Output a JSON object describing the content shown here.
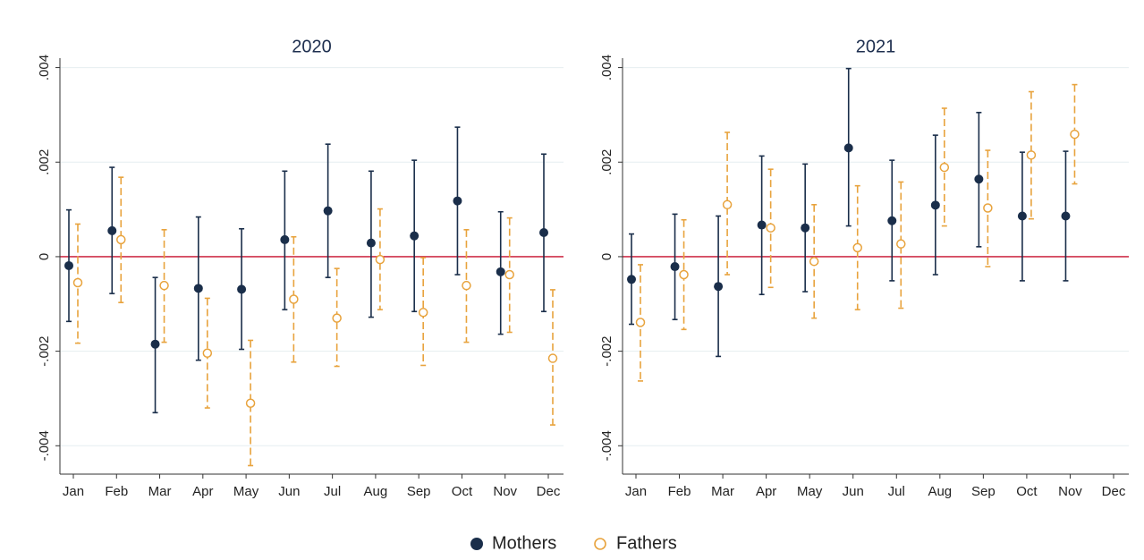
{
  "chart_data": [
    {
      "type": "errorbar",
      "title": "2020",
      "categories": [
        "Jan",
        "Feb",
        "Mar",
        "Apr",
        "May",
        "Jun",
        "Jul",
        "Aug",
        "Sep",
        "Oct",
        "Nov",
        "Dec"
      ],
      "ylim": [
        -0.0046,
        0.0042
      ],
      "yticks": [
        {
          "value": -0.004,
          "label": "-.004"
        },
        {
          "value": -0.002,
          "label": "-.002"
        },
        0,
        {
          "value": 0.002,
          "label": ".002"
        },
        {
          "value": 0.004,
          "label": ".004"
        }
      ],
      "grid": true,
      "refline": 0,
      "refline_color": "#c8102e",
      "series": [
        {
          "name": "Mothers",
          "color": "#1a2e4a",
          "marker": "filled",
          "dashed": false,
          "values": [
            -0.00019,
            0.00055,
            -0.00185,
            -0.00067,
            -0.00069,
            0.00036,
            0.00097,
            0.00029,
            0.00044,
            0.00118,
            -0.00032,
            0.00051
          ],
          "lower": [
            -0.00137,
            -0.00078,
            -0.0033,
            -0.00219,
            -0.00196,
            -0.00112,
            -0.00044,
            -0.00128,
            -0.00116,
            -0.00038,
            -0.00164,
            -0.00116
          ],
          "upper": [
            0.00099,
            0.00189,
            -0.00044,
            0.00084,
            0.00059,
            0.00181,
            0.00238,
            0.00181,
            0.00204,
            0.00274,
            0.00095,
            0.00217
          ]
        },
        {
          "name": "Fathers",
          "color": "#e8a33d",
          "marker": "hollow",
          "dashed": true,
          "values": [
            -0.00055,
            0.00036,
            -0.00061,
            -0.00204,
            -0.0031,
            -0.0009,
            -0.0013,
            -6e-05,
            -0.00118,
            -0.00061,
            -0.00038,
            -0.00215
          ],
          "lower": [
            -0.00183,
            -0.00097,
            -0.00181,
            -0.0032,
            -0.00442,
            -0.00223,
            -0.00232,
            -0.00112,
            -0.0023,
            -0.00181,
            -0.0016,
            -0.00356
          ],
          "upper": [
            0.00069,
            0.00168,
            0.00057,
            -0.00088,
            -0.00177,
            0.00042,
            -0.00025,
            0.00101,
            -2e-05,
            0.00057,
            0.00082,
            -0.0007
          ]
        }
      ]
    },
    {
      "type": "errorbar",
      "title": "2021",
      "categories": [
        "Jan",
        "Feb",
        "Mar",
        "Apr",
        "May",
        "Jun",
        "Jul",
        "Aug",
        "Sep",
        "Oct",
        "Nov",
        "Dec"
      ],
      "ylim": [
        -0.0046,
        0.0042
      ],
      "yticks": [
        {
          "value": -0.004,
          "label": "-.004"
        },
        {
          "value": -0.002,
          "label": "-.002"
        },
        0,
        {
          "value": 0.002,
          "label": ".002"
        },
        {
          "value": 0.004,
          "label": ".004"
        }
      ],
      "grid": true,
      "refline": 0,
      "refline_color": "#c8102e",
      "series": [
        {
          "name": "Mothers",
          "color": "#1a2e4a",
          "marker": "filled",
          "dashed": false,
          "values": [
            -0.00048,
            -0.00021,
            -0.00063,
            0.00067,
            0.00061,
            0.0023,
            0.00076,
            0.00109,
            0.00164,
            0.00086,
            0.00086,
            null
          ],
          "lower": [
            -0.00143,
            -0.00133,
            -0.00211,
            -0.0008,
            -0.00074,
            0.00065,
            -0.00051,
            -0.00038,
            0.00021,
            -0.00051,
            -0.00051,
            null
          ],
          "upper": [
            0.00048,
            0.0009,
            0.00086,
            0.00213,
            0.00196,
            0.00398,
            0.00204,
            0.00257,
            0.00305,
            0.00221,
            0.00223,
            null
          ]
        },
        {
          "name": "Fathers",
          "color": "#e8a33d",
          "marker": "hollow",
          "dashed": true,
          "values": [
            -0.00139,
            -0.00038,
            0.0011,
            0.00061,
            -0.0001,
            0.00019,
            0.00027,
            0.00189,
            0.00103,
            0.00215,
            0.00259,
            null
          ],
          "lower": [
            -0.00263,
            -0.00154,
            -0.00038,
            -0.00065,
            -0.0013,
            -0.00112,
            -0.00109,
            0.00065,
            -0.00021,
            0.0008,
            0.00154,
            null
          ],
          "upper": [
            -0.00017,
            0.00078,
            0.00263,
            0.00185,
            0.0011,
            0.0015,
            0.00158,
            0.00314,
            0.00225,
            0.00349,
            0.00364,
            null
          ]
        }
      ]
    }
  ]
}
